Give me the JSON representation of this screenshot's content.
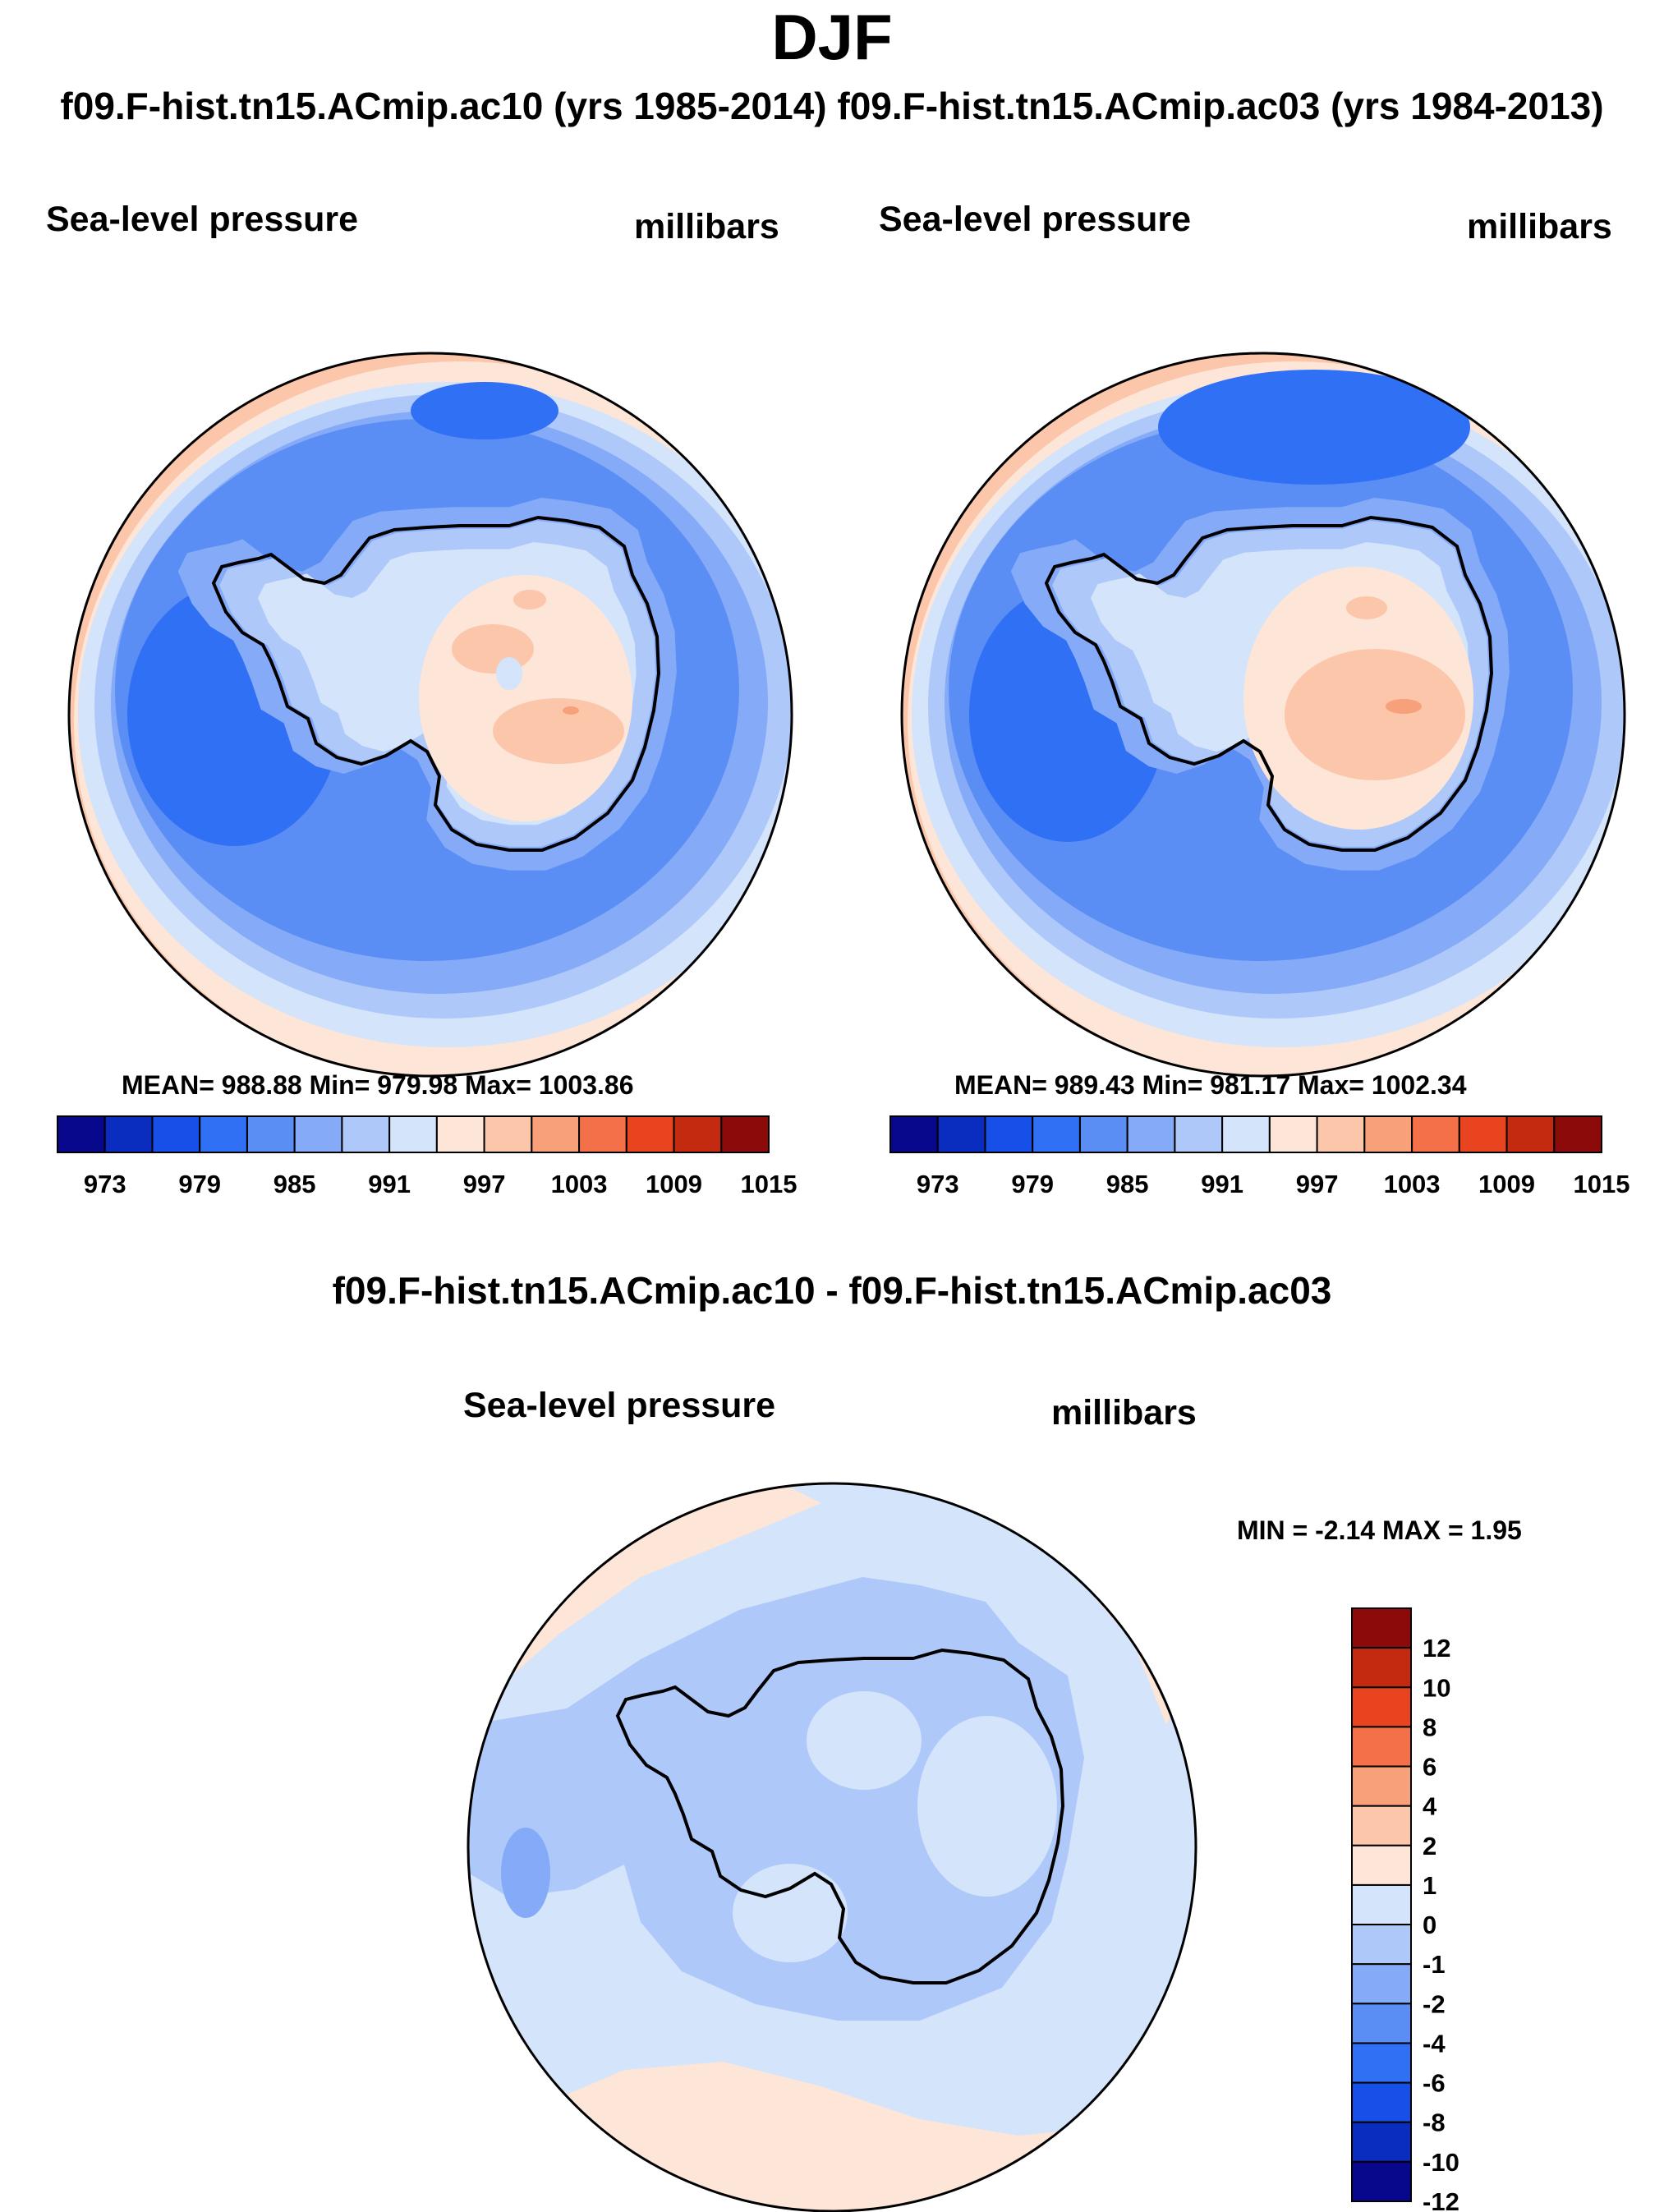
{
  "title": "DJF",
  "case_titles": "f09.F-hist.tn15.ACmip.ac10 (yrs 1985-2014) f09.F-hist.tn15.ACmip.ac03 (yrs 1984-2013)",
  "panels": [
    {
      "field": "Sea-level pressure",
      "units": "millibars",
      "stats": "MEAN= 988.88  Min= 979.98  Max= 1003.86"
    },
    {
      "field": "Sea-level pressure",
      "units": "millibars",
      "stats": "MEAN= 989.43  Min= 981.17  Max= 1002.34"
    }
  ],
  "difference": {
    "title": "f09.F-hist.tn15.ACmip.ac10 - f09.F-hist.tn15.ACmip.ac03",
    "field": "Sea-level pressure",
    "units": "millibars",
    "stats": "MIN =  -2.14 MAX =   1.95"
  },
  "colorbar_abs": {
    "colors": [
      "#08088c",
      "#0a2dc0",
      "#1650e8",
      "#3070f5",
      "#5a8ef5",
      "#85aaf7",
      "#aec8f9",
      "#d4e4fb",
      "#fde5d8",
      "#fbc6aa",
      "#f8a07a",
      "#f37048",
      "#e8441f",
      "#c42a10",
      "#8c0a0a"
    ],
    "labels": [
      "973",
      "979",
      "985",
      "991",
      "997",
      "1003",
      "1009",
      "1015"
    ]
  },
  "colorbar_diff": {
    "colors": [
      "#8c0a0a",
      "#c42a10",
      "#e8441f",
      "#f37048",
      "#f8a07a",
      "#fbc6aa",
      "#fde5d8",
      "#d4e4fb",
      "#aec8f9",
      "#85aaf7",
      "#5a8ef5",
      "#3070f5",
      "#1650e8",
      "#0a2dc0",
      "#08088c"
    ],
    "labels": [
      "12",
      "10",
      "8",
      "6",
      "4",
      "2",
      "1",
      "0",
      "-1",
      "-2",
      "-4",
      "-6",
      "-8",
      "-10",
      "-12"
    ]
  }
}
